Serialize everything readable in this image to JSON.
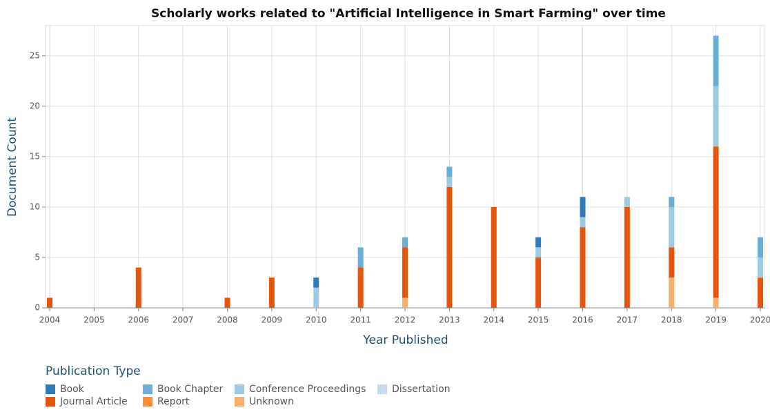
{
  "chart_data": {
    "type": "bar",
    "title": "Scholarly works related to \"Artificial Intelligence in Smart Farming\" over time",
    "x_label": "Year Published",
    "y_label": "Document Count",
    "legend_title": "Publication Type",
    "stacked": true,
    "grid": true,
    "x": [
      2004,
      2005,
      2006,
      2007,
      2008,
      2009,
      2010,
      2011,
      2012,
      2013,
      2014,
      2015,
      2016,
      2017,
      2018,
      2019,
      2020
    ],
    "xlim": [
      2004,
      2020
    ],
    "xticks": [
      2004,
      2005,
      2006,
      2007,
      2008,
      2009,
      2010,
      2011,
      2012,
      2013,
      2014,
      2015,
      2016,
      2017,
      2018,
      2019,
      2020
    ],
    "ylim": [
      0,
      28
    ],
    "yticks": [
      0,
      5,
      10,
      15,
      20,
      25
    ],
    "series": [
      {
        "name": "Book",
        "color": "#2f7bb8",
        "values": [
          0,
          0,
          0,
          0,
          0,
          0,
          1,
          0,
          0,
          0,
          0,
          1,
          2,
          0,
          0,
          0,
          0
        ]
      },
      {
        "name": "Book Chapter",
        "color": "#6baed6",
        "values": [
          0,
          0,
          0,
          0,
          0,
          0,
          0,
          2,
          1,
          1,
          0,
          0,
          0,
          0,
          1,
          5,
          2
        ]
      },
      {
        "name": "Conference Proceedings",
        "color": "#9ecae1",
        "values": [
          0,
          0,
          0,
          0,
          0,
          0,
          2,
          0,
          0,
          1,
          0,
          1,
          1,
          1,
          4,
          6,
          2
        ]
      },
      {
        "name": "Dissertation",
        "color": "#c6dbef",
        "values": [
          0,
          0,
          0,
          0,
          0,
          0,
          0,
          0,
          0,
          0,
          0,
          0,
          0,
          0,
          0,
          0,
          0
        ]
      },
      {
        "name": "Journal Article",
        "color": "#e6550d",
        "values": [
          1,
          0,
          4,
          0,
          1,
          3,
          0,
          4,
          5,
          12,
          10,
          5,
          8,
          10,
          3,
          15,
          3
        ]
      },
      {
        "name": "Report",
        "color": "#fd8d3c",
        "values": [
          0,
          0,
          0,
          0,
          0,
          0,
          0,
          0,
          0,
          0,
          0,
          0,
          0,
          0,
          0,
          0,
          0
        ]
      },
      {
        "name": "Unknown",
        "color": "#fdae6b",
        "values": [
          0,
          0,
          0,
          0,
          0,
          0,
          0,
          0,
          1,
          0,
          0,
          0,
          0,
          0,
          3,
          1,
          0
        ]
      }
    ]
  }
}
